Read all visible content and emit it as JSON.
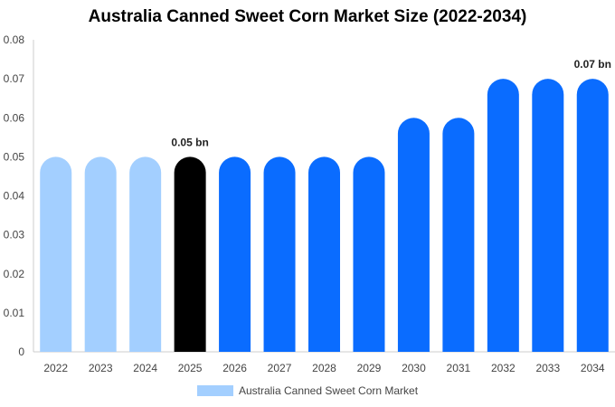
{
  "chart_data": {
    "type": "bar",
    "title": "Australia Canned Sweet Corn Market Size (2022-2034)",
    "xlabel": "",
    "ylabel": "",
    "categories": [
      "2022",
      "2023",
      "2024",
      "2025",
      "2026",
      "2027",
      "2028",
      "2029",
      "2030",
      "2031",
      "2032",
      "2033",
      "2034"
    ],
    "series": [
      {
        "name": "Australia Canned Sweet Corn Market",
        "values": [
          0.05,
          0.05,
          0.05,
          0.05,
          0.05,
          0.05,
          0.05,
          0.05,
          0.06,
          0.06,
          0.07,
          0.07,
          0.07
        ]
      }
    ],
    "ylim": [
      0,
      0.08
    ],
    "yticks": [
      "0",
      "0.01",
      "0.02",
      "0.03",
      "0.04",
      "0.05",
      "0.06",
      "0.07",
      "0.08"
    ],
    "bar_colors": [
      "#a3cfff",
      "#a3cfff",
      "#a3cfff",
      "#000000",
      "#0a6cff",
      "#0a6cff",
      "#0a6cff",
      "#0a6cff",
      "#0a6cff",
      "#0a6cff",
      "#0a6cff",
      "#0a6cff",
      "#0a6cff"
    ],
    "annotations": [
      {
        "category": "2025",
        "text": "0.05 bn"
      },
      {
        "category": "2034",
        "text": "0.07 bn"
      }
    ],
    "grid": false,
    "legend_placement": "bottom",
    "legend_color": "#a3cfff"
  }
}
